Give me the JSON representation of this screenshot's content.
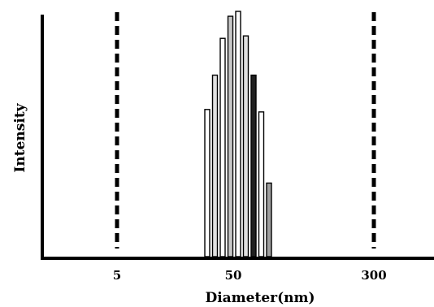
{
  "chart_data": {
    "type": "bar",
    "title": "",
    "xlabel": "Diameter(nm)",
    "ylabel": "Intensity",
    "x_tick_labels": [
      "5",
      "50",
      "300"
    ],
    "reference_lines": [
      {
        "x": "5",
        "style": "dashed"
      },
      {
        "x": "300",
        "style": "dashed"
      }
    ],
    "bars": [
      {
        "x": 32,
        "intensity": 0.6
      },
      {
        "x": 36,
        "intensity": 0.74
      },
      {
        "x": 40,
        "intensity": 0.89
      },
      {
        "x": 44,
        "intensity": 0.98
      },
      {
        "x": 48,
        "intensity": 1.0
      },
      {
        "x": 52,
        "intensity": 0.9
      },
      {
        "x": 56,
        "intensity": 0.74
      },
      {
        "x": 60,
        "intensity": 0.59
      },
      {
        "x": 64,
        "intensity": 0.3
      }
    ],
    "bar_colors": [
      "#ffffff",
      "#e0e0e0",
      "#ffffff",
      "#c8c8c8",
      "#ffffff",
      "#e0e0e0",
      "#202020",
      "#ffffff",
      "#a0a0a0"
    ],
    "grid": false,
    "legend": "none",
    "y_tick_labels_shown": false
  }
}
